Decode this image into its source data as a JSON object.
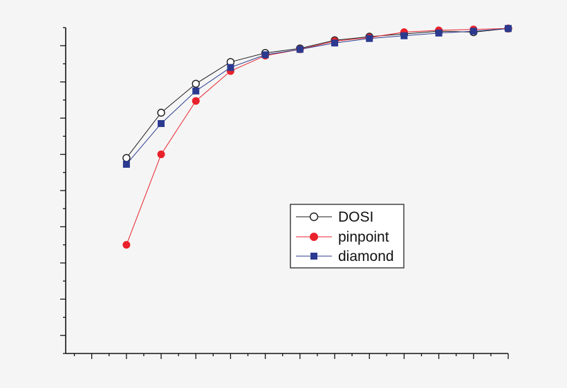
{
  "chart_data": {
    "type": "line",
    "title": "",
    "xlabel": "",
    "ylabel": "",
    "tick_labels_shown": false,
    "legend_position": "center-right",
    "xlim": [
      -0.75,
      12.0
    ],
    "ylim": [
      -9.0,
      9.0
    ],
    "x": [
      1,
      2,
      3,
      4,
      5,
      6,
      7,
      8,
      9,
      10,
      11,
      12
    ],
    "series": [
      {
        "name": "DOSI",
        "marker": "open-circle",
        "color": "#1a1a1a",
        "fill": "#ffffff",
        "values": [
          1.8,
          4.3,
          5.9,
          7.1,
          7.6,
          7.85,
          8.3,
          8.5,
          8.65,
          8.8,
          8.75,
          8.95
        ]
      },
      {
        "name": "pinpoint",
        "marker": "filled-circle",
        "color": "#e8212b",
        "fill": "#e8212b",
        "values": [
          -3.0,
          2.0,
          4.95,
          6.6,
          7.45,
          7.8,
          8.25,
          8.45,
          8.75,
          8.85,
          8.9,
          8.95
        ]
      },
      {
        "name": "diamond",
        "marker": "filled-square",
        "color": "#2b3a8f",
        "fill": "#2b3a8f",
        "values": [
          1.45,
          3.7,
          5.5,
          6.8,
          7.5,
          7.8,
          8.15,
          8.4,
          8.55,
          8.7,
          8.8,
          8.95
        ]
      }
    ]
  }
}
